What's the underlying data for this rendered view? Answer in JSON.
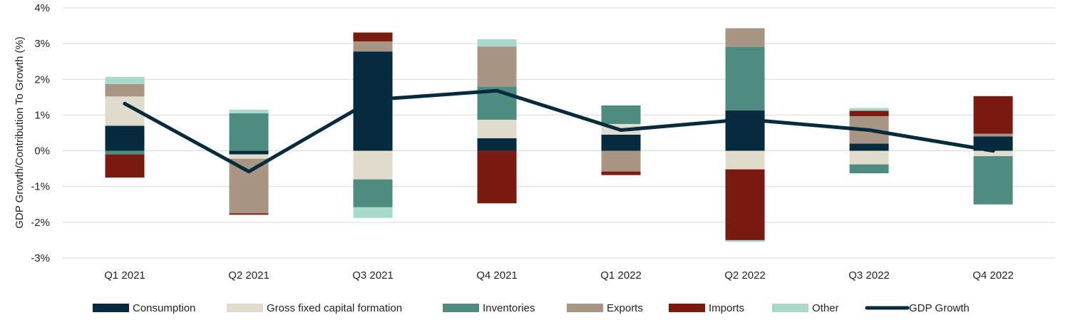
{
  "chart_data": {
    "type": "bar",
    "stacked": true,
    "title": "",
    "xlabel": "",
    "ylabel": "GDP Growth/Contribution To Growth (%)",
    "ylim": [
      -3,
      4
    ],
    "yticks": [
      -3,
      -2,
      -1,
      0,
      1,
      2,
      3,
      4
    ],
    "ytick_labels": [
      "-3%",
      "-2%",
      "-1%",
      "0%",
      "1%",
      "2%",
      "3%",
      "4%"
    ],
    "grid": true,
    "legend_position": "bottom",
    "categories": [
      "Q1 2021",
      "Q2 2021",
      "Q3 2021",
      "Q4 2021",
      "Q1 2022",
      "Q2 2022",
      "Q3 2022",
      "Q4 2022"
    ],
    "series": [
      {
        "name": "Consumption",
        "color": "#062a3e",
        "values": [
          0.7,
          -0.1,
          2.78,
          0.35,
          0.45,
          1.13,
          0.2,
          0.4
        ]
      },
      {
        "name": "Gross fixed capital formation",
        "color": "#e0dccd",
        "values": [
          0.82,
          -0.12,
          -0.8,
          0.52,
          0.3,
          -0.52,
          -0.38,
          -0.15
        ]
      },
      {
        "name": "Inventories",
        "color": "#4e8b80",
        "values": [
          -0.1,
          1.05,
          -0.78,
          0.93,
          0.52,
          1.78,
          -0.25,
          -1.35
        ]
      },
      {
        "name": "Exports",
        "color": "#a89584",
        "values": [
          0.35,
          -1.53,
          0.28,
          1.12,
          -0.58,
          0.52,
          0.77,
          0.08
        ]
      },
      {
        "name": "Imports",
        "color": "#7a1a10",
        "values": [
          -0.65,
          -0.04,
          0.25,
          -1.47,
          -0.1,
          -1.98,
          0.15,
          1.05
        ]
      },
      {
        "name": "Other",
        "color": "#a9d8cc",
        "values": [
          0.2,
          0.1,
          -0.3,
          0.2,
          0.0,
          -0.05,
          0.08,
          0.0
        ]
      }
    ],
    "line_series": {
      "name": "GDP Growth",
      "color": "#062a3e",
      "values": [
        1.32,
        -0.58,
        1.43,
        1.68,
        0.58,
        0.88,
        0.58,
        0.0
      ]
    }
  }
}
